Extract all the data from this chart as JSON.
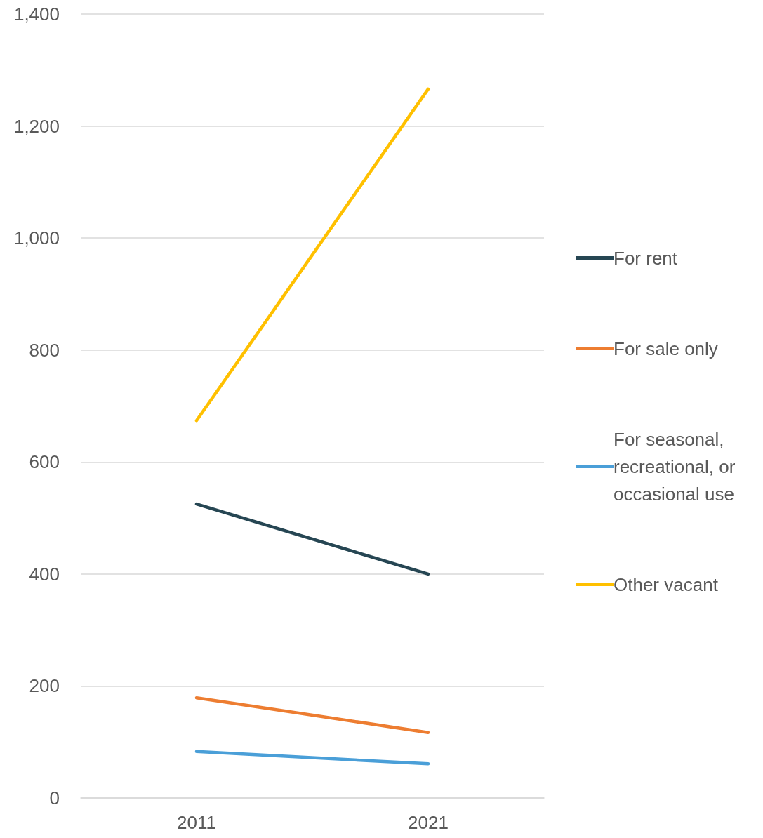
{
  "chart_data": {
    "type": "line",
    "categories": [
      "2011",
      "2021"
    ],
    "series": [
      {
        "name": "For rent",
        "color": "#264653",
        "values": [
          525,
          400
        ]
      },
      {
        "name": "For sale only",
        "color": "#ed7d31",
        "values": [
          179,
          117
        ]
      },
      {
        "name": "For seasonal, recreational, or occasional use",
        "color": "#4a9fd8",
        "values": [
          83,
          61
        ]
      },
      {
        "name": "Other vacant",
        "color": "#ffc000",
        "values": [
          674,
          1266
        ]
      }
    ],
    "ylim": [
      0,
      1400
    ],
    "yticks": [
      0,
      200,
      400,
      600,
      800,
      {
        "value": 1000,
        "label": "1,000"
      },
      {
        "value": 1200,
        "label": "1,200"
      },
      {
        "value": 1400,
        "label": "1,400"
      }
    ],
    "grid": "y",
    "legend": "right",
    "marker": "none",
    "line_style": "solid"
  }
}
